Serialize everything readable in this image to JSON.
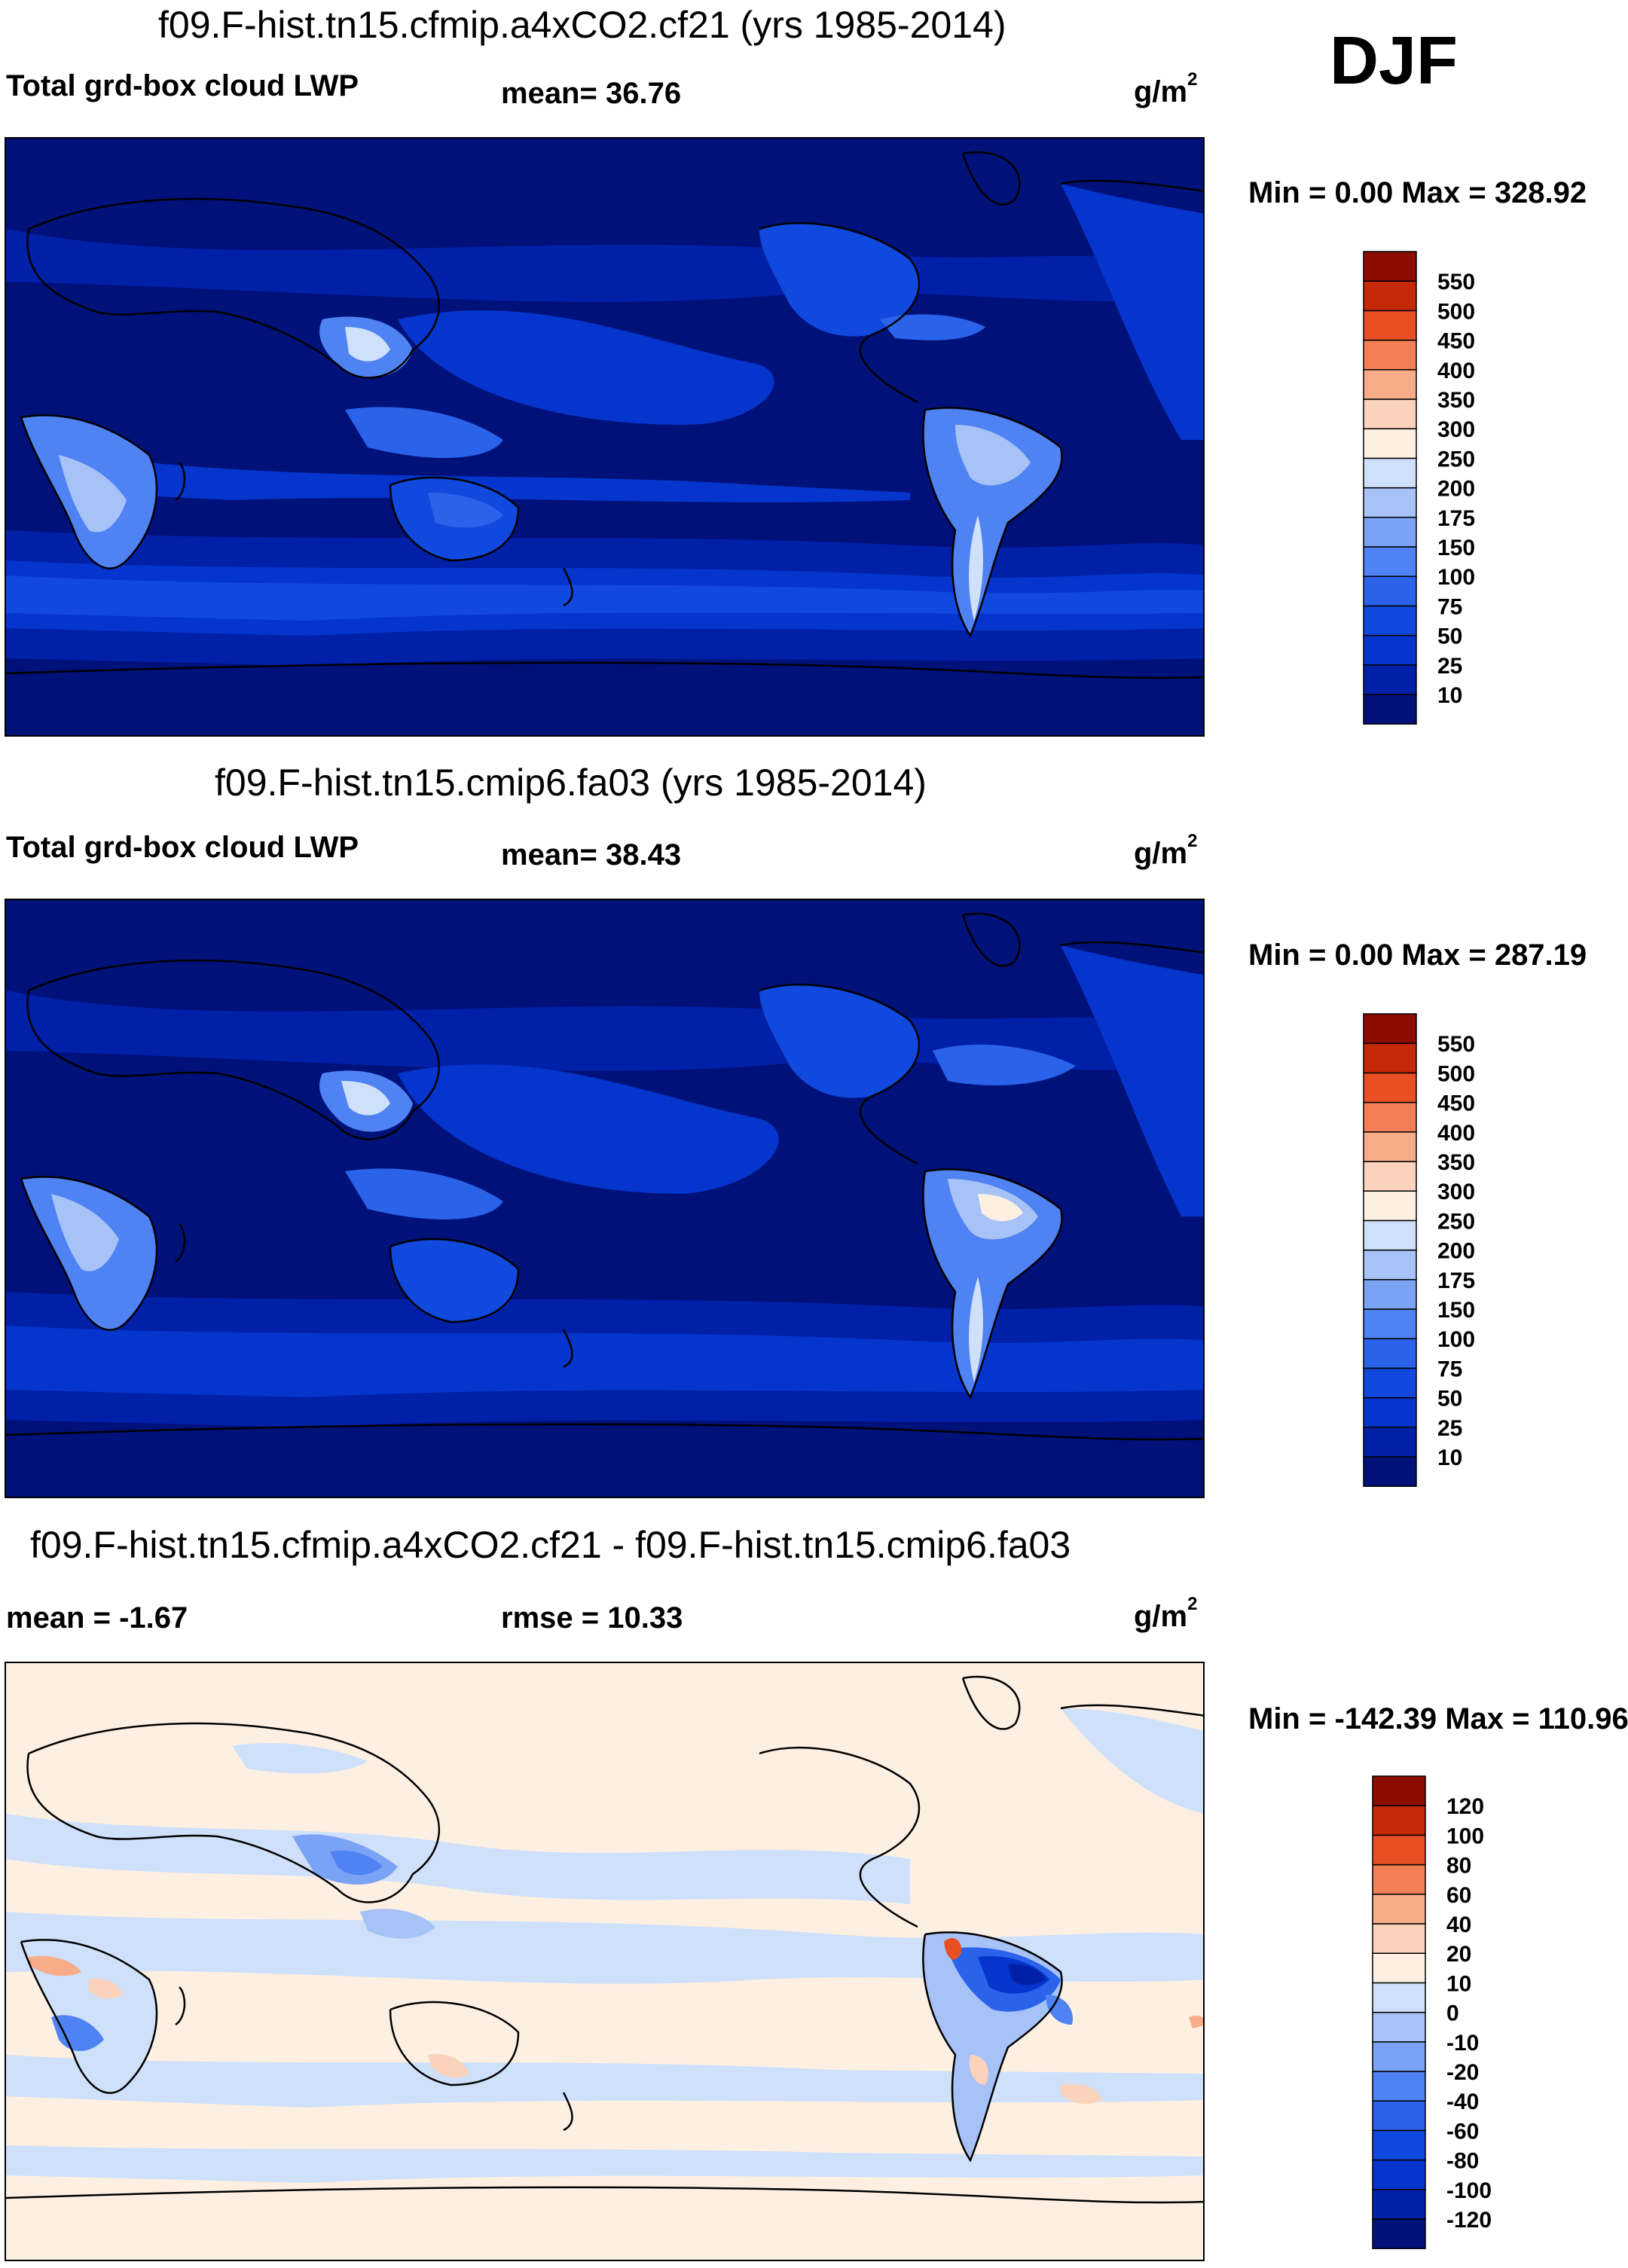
{
  "season": "DJF",
  "panels": [
    {
      "title": "f09.F-hist.tn15.cfmip.a4xCO2.cf21 (yrs 1985-2014)",
      "left_label": "Total grd-box cloud LWP",
      "mid_label": "mean=  36.76",
      "unit": "g/m",
      "unit_sup": "2",
      "minmax": "Min =   0.00 Max = 328.92",
      "levels": [
        "10",
        "25",
        "50",
        "75",
        "100",
        "150",
        "175",
        "200",
        "250",
        "300",
        "350",
        "400",
        "450",
        "500",
        "550"
      ],
      "colors": [
        "#00117a",
        "#0020a8",
        "#0535cc",
        "#1148dd",
        "#2a62ea",
        "#4f82f2",
        "#7aa2f5",
        "#a6c2f7",
        "#cfe0fa",
        "#fdf0e2",
        "#fbd2bb",
        "#f8ac88",
        "#f47f55",
        "#e85024",
        "#c42a08",
        "#8c0c00"
      ]
    },
    {
      "title": "f09.F-hist.tn15.cmip6.fa03 (yrs 1985-2014)",
      "left_label": "Total grd-box cloud LWP",
      "mid_label": "mean=  38.43",
      "unit": "g/m",
      "unit_sup": "2",
      "minmax": "Min =   0.00 Max = 287.19",
      "levels": [
        "10",
        "25",
        "50",
        "75",
        "100",
        "150",
        "175",
        "200",
        "250",
        "300",
        "350",
        "400",
        "450",
        "500",
        "550"
      ],
      "colors": [
        "#00117a",
        "#0020a8",
        "#0535cc",
        "#1148dd",
        "#2a62ea",
        "#4f82f2",
        "#7aa2f5",
        "#a6c2f7",
        "#cfe0fa",
        "#fdf0e2",
        "#fbd2bb",
        "#f8ac88",
        "#f47f55",
        "#e85024",
        "#c42a08",
        "#8c0c00"
      ]
    },
    {
      "title": "f09.F-hist.tn15.cfmip.a4xCO2.cf21 - f09.F-hist.tn15.cmip6.fa03",
      "left_label": "mean =  -1.67",
      "mid_label": "rmse =  10.33",
      "unit": "g/m",
      "unit_sup": "2",
      "minmax": "Min = -142.39 Max = 110.96",
      "levels": [
        "-120",
        "-100",
        "-80",
        "-60",
        "-40",
        "-20",
        "-10",
        "0",
        "10",
        "20",
        "40",
        "60",
        "80",
        "100",
        "120"
      ],
      "colors": [
        "#00117a",
        "#0020a8",
        "#0535cc",
        "#1148dd",
        "#2a62ea",
        "#4f82f2",
        "#7aa2f5",
        "#a6c2f7",
        "#cfe0fa",
        "#fdf0e2",
        "#fbd2bb",
        "#f8ac88",
        "#f47f55",
        "#e85024",
        "#c42a08",
        "#8c0c00"
      ]
    }
  ],
  "chart_data": [
    {
      "type": "heatmap",
      "title": "f09.F-hist.tn15.cfmip.a4xCO2.cf21 (yrs 1985-2014)",
      "variable": "Total grd-box cloud LWP",
      "units": "g/m2",
      "mean": 36.76,
      "min": 0.0,
      "max": 328.92,
      "contour_levels": [
        10,
        25,
        50,
        75,
        100,
        150,
        175,
        200,
        250,
        300,
        350,
        400,
        450,
        500,
        550
      ],
      "map": "global lat-lon, centered on Pacific",
      "grid": false
    },
    {
      "type": "heatmap",
      "title": "f09.F-hist.tn15.cmip6.fa03 (yrs 1985-2014)",
      "variable": "Total grd-box cloud LWP",
      "units": "g/m2",
      "mean": 38.43,
      "min": 0.0,
      "max": 287.19,
      "contour_levels": [
        10,
        25,
        50,
        75,
        100,
        150,
        175,
        200,
        250,
        300,
        350,
        400,
        450,
        500,
        550
      ],
      "map": "global lat-lon, centered on Pacific",
      "grid": false
    },
    {
      "type": "heatmap",
      "title": "f09.F-hist.tn15.cfmip.a4xCO2.cf21 - f09.F-hist.tn15.cmip6.fa03",
      "units": "g/m2",
      "mean": -1.67,
      "rmse": 10.33,
      "min": -142.39,
      "max": 110.96,
      "contour_levels": [
        -120,
        -100,
        -80,
        -60,
        -40,
        -20,
        -10,
        0,
        10,
        20,
        40,
        60,
        80,
        100,
        120
      ],
      "map": "global lat-lon, centered on Pacific",
      "grid": false
    }
  ]
}
